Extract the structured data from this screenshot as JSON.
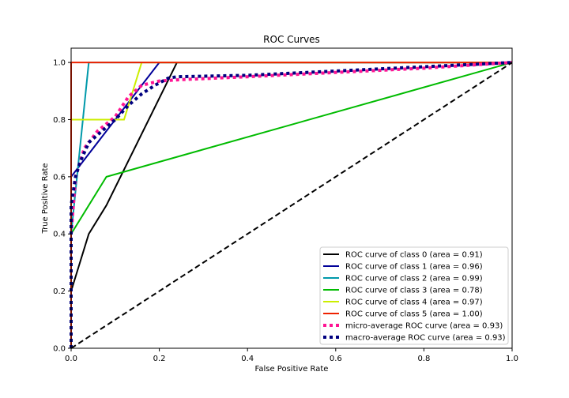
{
  "chart_data": {
    "type": "line",
    "title": "ROC Curves",
    "xlabel": "False Positive Rate",
    "ylabel": "True Positive Rate",
    "xlim": [
      0.0,
      1.0
    ],
    "ylim": [
      0.0,
      1.05
    ],
    "xticks": [
      "0.0",
      "0.2",
      "0.4",
      "0.6",
      "0.8",
      "1.0"
    ],
    "yticks": [
      "0.0",
      "0.2",
      "0.4",
      "0.6",
      "0.8",
      "1.0"
    ],
    "grid": false,
    "legend_position": "lower-right",
    "series": [
      {
        "name": "ROC curve of class 0 (area = 0.91)",
        "color": "#000000",
        "style": "solid",
        "x": [
          0.0,
          0.0,
          0.04,
          0.08,
          0.24,
          0.24,
          1.0
        ],
        "y": [
          0.0,
          0.2,
          0.4,
          0.5,
          1.0,
          1.0,
          1.0
        ]
      },
      {
        "name": "ROC curve of class 1 (area = 0.96)",
        "color": "#000099",
        "style": "solid",
        "x": [
          0.0,
          0.0,
          0.2,
          1.0
        ],
        "y": [
          0.0,
          0.6,
          1.0,
          1.0
        ]
      },
      {
        "name": "ROC curve of class 2 (area = 0.99)",
        "color": "#0099aa",
        "style": "solid",
        "x": [
          0.0,
          0.0,
          0.04,
          1.0
        ],
        "y": [
          0.0,
          0.4,
          1.0,
          1.0
        ]
      },
      {
        "name": "ROC curve of class 3 (area = 0.78)",
        "color": "#00bb00",
        "style": "solid",
        "x": [
          0.0,
          0.0,
          0.08,
          1.0
        ],
        "y": [
          0.0,
          0.4,
          0.6,
          1.0
        ]
      },
      {
        "name": "ROC curve of class 4 (area = 0.97)",
        "color": "#ccee00",
        "style": "solid",
        "x": [
          0.0,
          0.0,
          0.12,
          0.16,
          1.0
        ],
        "y": [
          0.0,
          0.8,
          0.8,
          1.0,
          1.0
        ]
      },
      {
        "name": "ROC curve of class 5 (area = 1.00)",
        "color": "#ee2200",
        "style": "solid",
        "x": [
          0.0,
          0.0,
          1.0
        ],
        "y": [
          0.0,
          1.0,
          1.0
        ]
      },
      {
        "name": "micro-average ROC curve (area = 0.93)",
        "color": "#ff1493",
        "style": "dotted",
        "x": [
          0.0,
          0.0,
          0.01,
          0.03,
          0.06,
          0.1,
          0.13,
          0.16,
          0.2,
          0.25,
          0.4,
          0.6,
          0.8,
          0.9,
          1.0
        ],
        "y": [
          0.0,
          0.4,
          0.6,
          0.7,
          0.76,
          0.81,
          0.88,
          0.92,
          0.935,
          0.94,
          0.95,
          0.965,
          0.98,
          0.99,
          1.0
        ]
      },
      {
        "name": "macro-average ROC curve (area = 0.93)",
        "color": "#000080",
        "style": "dotted",
        "x": [
          0.0,
          0.0,
          0.01,
          0.02,
          0.04,
          0.07,
          0.1,
          0.13,
          0.16,
          0.19,
          0.22,
          0.24,
          0.4,
          0.6,
          0.8,
          1.0
        ],
        "y": [
          0.0,
          0.5,
          0.6,
          0.65,
          0.72,
          0.76,
          0.8,
          0.85,
          0.89,
          0.92,
          0.945,
          0.95,
          0.955,
          0.97,
          0.985,
          1.0
        ]
      },
      {
        "name": "",
        "color": "#000000",
        "style": "dashed",
        "x": [
          0.0,
          1.0
        ],
        "y": [
          0.0,
          1.0
        ]
      }
    ]
  }
}
